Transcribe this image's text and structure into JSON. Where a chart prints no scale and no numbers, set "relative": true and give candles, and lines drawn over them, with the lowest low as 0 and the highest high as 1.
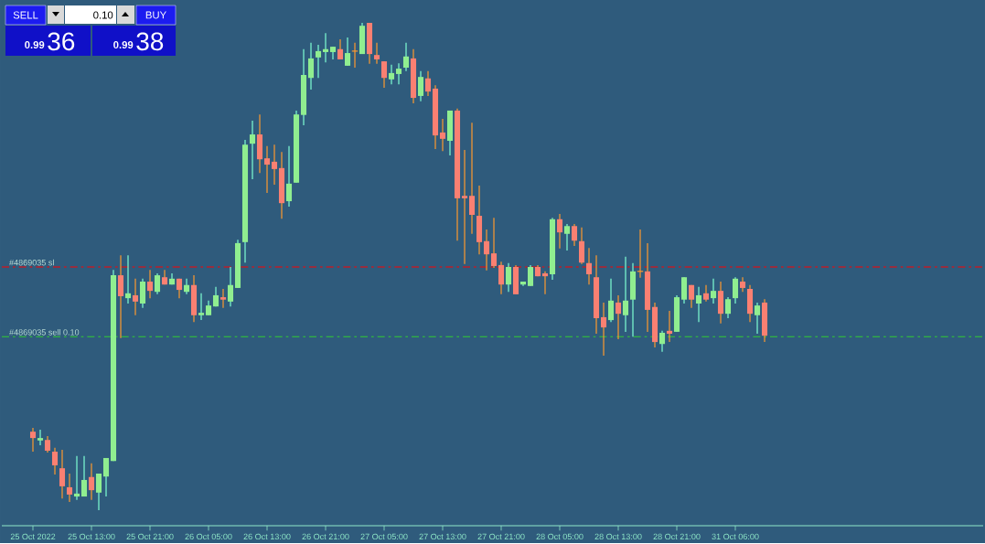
{
  "chart_data": {
    "type": "candlestick",
    "relative": true,
    "tick_labels": "x",
    "categories": [
      "25 Oct 2022",
      null,
      null,
      null,
      null,
      null,
      null,
      null,
      "25 Oct 13:00",
      null,
      null,
      null,
      null,
      null,
      null,
      null,
      "25 Oct 21:00",
      null,
      null,
      null,
      null,
      null,
      null,
      null,
      "26 Oct 05:00",
      null,
      null,
      null,
      null,
      null,
      null,
      null,
      "26 Oct 13:00",
      null,
      null,
      null,
      null,
      null,
      null,
      null,
      "26 Oct 21:00",
      null,
      null,
      null,
      null,
      null,
      null,
      null,
      "27 Oct 05:00",
      null,
      null,
      null,
      null,
      null,
      null,
      null,
      "27 Oct 13:00",
      null,
      null,
      null,
      null,
      null,
      null,
      null,
      "27 Oct 21:00",
      null,
      null,
      null,
      null,
      null,
      null,
      null,
      "28 Oct 05:00",
      null,
      null,
      null,
      null,
      null,
      null,
      null,
      "28 Oct 13:00",
      null,
      null,
      null,
      null,
      null,
      null,
      null,
      "28 Oct 21:00",
      null,
      null,
      null,
      null,
      null,
      null,
      null,
      "31 Oct 06:00",
      null,
      null,
      null,
      null
    ],
    "ohlc": [
      [
        0.161,
        0.169,
        0.12,
        0.148
      ],
      [
        0.143,
        0.165,
        0.133,
        0.148
      ],
      [
        0.144,
        0.152,
        0.118,
        0.122
      ],
      [
        0.12,
        0.128,
        0.073,
        0.092
      ],
      [
        0.086,
        0.124,
        0.024,
        0.049
      ],
      [
        0.047,
        0.075,
        0.017,
        0.032
      ],
      [
        0.028,
        0.111,
        0.021,
        0.034
      ],
      [
        0.028,
        0.111,
        0.028,
        0.062
      ],
      [
        0.068,
        0.096,
        0.021,
        0.041
      ],
      [
        0.036,
        0.075,
        0.0,
        0.075
      ],
      [
        0.069,
        0.107,
        0.028,
        0.107
      ],
      [
        0.101,
        0.493,
        0.101,
        0.482
      ],
      [
        0.482,
        0.523,
        0.353,
        0.439
      ],
      [
        0.435,
        0.523,
        0.424,
        0.445
      ],
      [
        0.441,
        0.475,
        0.4,
        0.428
      ],
      [
        0.424,
        0.475,
        0.415,
        0.469
      ],
      [
        0.469,
        0.493,
        0.435,
        0.45
      ],
      [
        0.448,
        0.486,
        0.443,
        0.482
      ],
      [
        0.478,
        0.493,
        0.463,
        0.463
      ],
      [
        0.463,
        0.486,
        0.463,
        0.475
      ],
      [
        0.475,
        0.475,
        0.435,
        0.452
      ],
      [
        0.448,
        0.475,
        0.443,
        0.462
      ],
      [
        0.462,
        0.482,
        0.386,
        0.4
      ],
      [
        0.4,
        0.445,
        0.39,
        0.405
      ],
      [
        0.4,
        0.43,
        0.4,
        0.42
      ],
      [
        0.418,
        0.458,
        0.418,
        0.441
      ],
      [
        0.437,
        0.454,
        0.415,
        0.432
      ],
      [
        0.428,
        0.499,
        0.418,
        0.462
      ],
      [
        0.456,
        0.555,
        0.456,
        0.548
      ],
      [
        0.55,
        0.76,
        0.508,
        0.75
      ],
      [
        0.752,
        0.799,
        0.679,
        0.771
      ],
      [
        0.771,
        0.812,
        0.692,
        0.72
      ],
      [
        0.722,
        0.747,
        0.651,
        0.709
      ],
      [
        0.715,
        0.75,
        0.668,
        0.7
      ],
      [
        0.702,
        0.735,
        0.598,
        0.63
      ],
      [
        0.634,
        0.747,
        0.623,
        0.67
      ],
      [
        0.672,
        0.82,
        0.672,
        0.812
      ],
      [
        0.811,
        0.946,
        0.79,
        0.893
      ],
      [
        0.887,
        0.959,
        0.863,
        0.927
      ],
      [
        0.929,
        0.955,
        0.887,
        0.942
      ],
      [
        0.94,
        0.979,
        0.919,
        0.946
      ],
      [
        0.94,
        0.951,
        0.925,
        0.951
      ],
      [
        0.946,
        0.966,
        0.925,
        0.925
      ],
      [
        0.912,
        0.97,
        0.912,
        0.938
      ],
      [
        0.942,
        0.959,
        0.908,
        0.942
      ],
      [
        0.936,
        1.0,
        0.936,
        0.994
      ],
      [
        1.0,
        1.0,
        0.916,
        0.936
      ],
      [
        0.934,
        0.959,
        0.916,
        0.925
      ],
      [
        0.921,
        0.921,
        0.867,
        0.887
      ],
      [
        0.884,
        0.914,
        0.874,
        0.897
      ],
      [
        0.895,
        0.917,
        0.874,
        0.906
      ],
      [
        0.908,
        0.959,
        0.901,
        0.931
      ],
      [
        0.927,
        0.946,
        0.835,
        0.846
      ],
      [
        0.85,
        0.901,
        0.839,
        0.889
      ],
      [
        0.886,
        0.901,
        0.85,
        0.859
      ],
      [
        0.865,
        0.872,
        0.741,
        0.769
      ],
      [
        0.775,
        0.803,
        0.737,
        0.762
      ],
      [
        0.758,
        0.82,
        0.728,
        0.82
      ],
      [
        0.82,
        0.824,
        0.553,
        0.64
      ],
      [
        0.645,
        0.739,
        0.505,
        0.64
      ],
      [
        0.645,
        0.795,
        0.567,
        0.606
      ],
      [
        0.604,
        0.666,
        0.525,
        0.55
      ],
      [
        0.552,
        0.576,
        0.492,
        0.525
      ],
      [
        0.527,
        0.6,
        0.497,
        0.501
      ],
      [
        0.503,
        0.51,
        0.443,
        0.463
      ],
      [
        0.463,
        0.507,
        0.448,
        0.499
      ],
      [
        0.499,
        0.503,
        0.443,
        0.443
      ],
      [
        0.463,
        0.469,
        0.46,
        0.469
      ],
      [
        0.46,
        0.503,
        0.46,
        0.499
      ],
      [
        0.499,
        0.503,
        0.48,
        0.48
      ],
      [
        0.486,
        0.49,
        0.443,
        0.48
      ],
      [
        0.484,
        0.6,
        0.473,
        0.597
      ],
      [
        0.597,
        0.608,
        0.537,
        0.57
      ],
      [
        0.567,
        0.587,
        0.533,
        0.583
      ],
      [
        0.583,
        0.587,
        0.542,
        0.553
      ],
      [
        0.552,
        0.58,
        0.505,
        0.508
      ],
      [
        0.507,
        0.538,
        0.463,
        0.484
      ],
      [
        0.478,
        0.523,
        0.362,
        0.394
      ],
      [
        0.396,
        0.426,
        0.317,
        0.375
      ],
      [
        0.39,
        0.475,
        0.386,
        0.43
      ],
      [
        0.426,
        0.441,
        0.351,
        0.403
      ],
      [
        0.4,
        0.52,
        0.366,
        0.43
      ],
      [
        0.432,
        0.507,
        0.356,
        0.49
      ],
      [
        0.49,
        0.576,
        0.477,
        0.49
      ],
      [
        0.49,
        0.548,
        0.366,
        0.411
      ],
      [
        0.417,
        0.426,
        0.334,
        0.345
      ],
      [
        0.341,
        0.368,
        0.325,
        0.364
      ],
      [
        0.368,
        0.409,
        0.345,
        0.362
      ],
      [
        0.366,
        0.441,
        0.366,
        0.437
      ],
      [
        0.432,
        0.478,
        0.424,
        0.478
      ],
      [
        0.462,
        0.462,
        0.415,
        0.432
      ],
      [
        0.424,
        0.458,
        0.386,
        0.441
      ],
      [
        0.445,
        0.462,
        0.428,
        0.432
      ],
      [
        0.435,
        0.475,
        0.424,
        0.45
      ],
      [
        0.45,
        0.469,
        0.383,
        0.403
      ],
      [
        0.403,
        0.437,
        0.394,
        0.433
      ],
      [
        0.435,
        0.478,
        0.424,
        0.475
      ],
      [
        0.469,
        0.478,
        0.448,
        0.456
      ],
      [
        0.454,
        0.462,
        0.386,
        0.403
      ],
      [
        0.4,
        0.426,
        0.362,
        0.42
      ],
      [
        0.426,
        0.433,
        0.345,
        0.358
      ]
    ],
    "ref_lines": [
      {
        "axis": "y",
        "value": 0.499,
        "label": "#4869035 sl",
        "color": "#ff0000",
        "line_style": "dashed"
      },
      {
        "axis": "y",
        "value": 0.356,
        "label": "#4869035 sell 0.10",
        "color": "#32cd32",
        "line_style": "dashed"
      }
    ],
    "annotations": [
      "SELL",
      "0.10",
      "BUY",
      "0.99",
      "36",
      "0.99",
      "38"
    ]
  }
}
